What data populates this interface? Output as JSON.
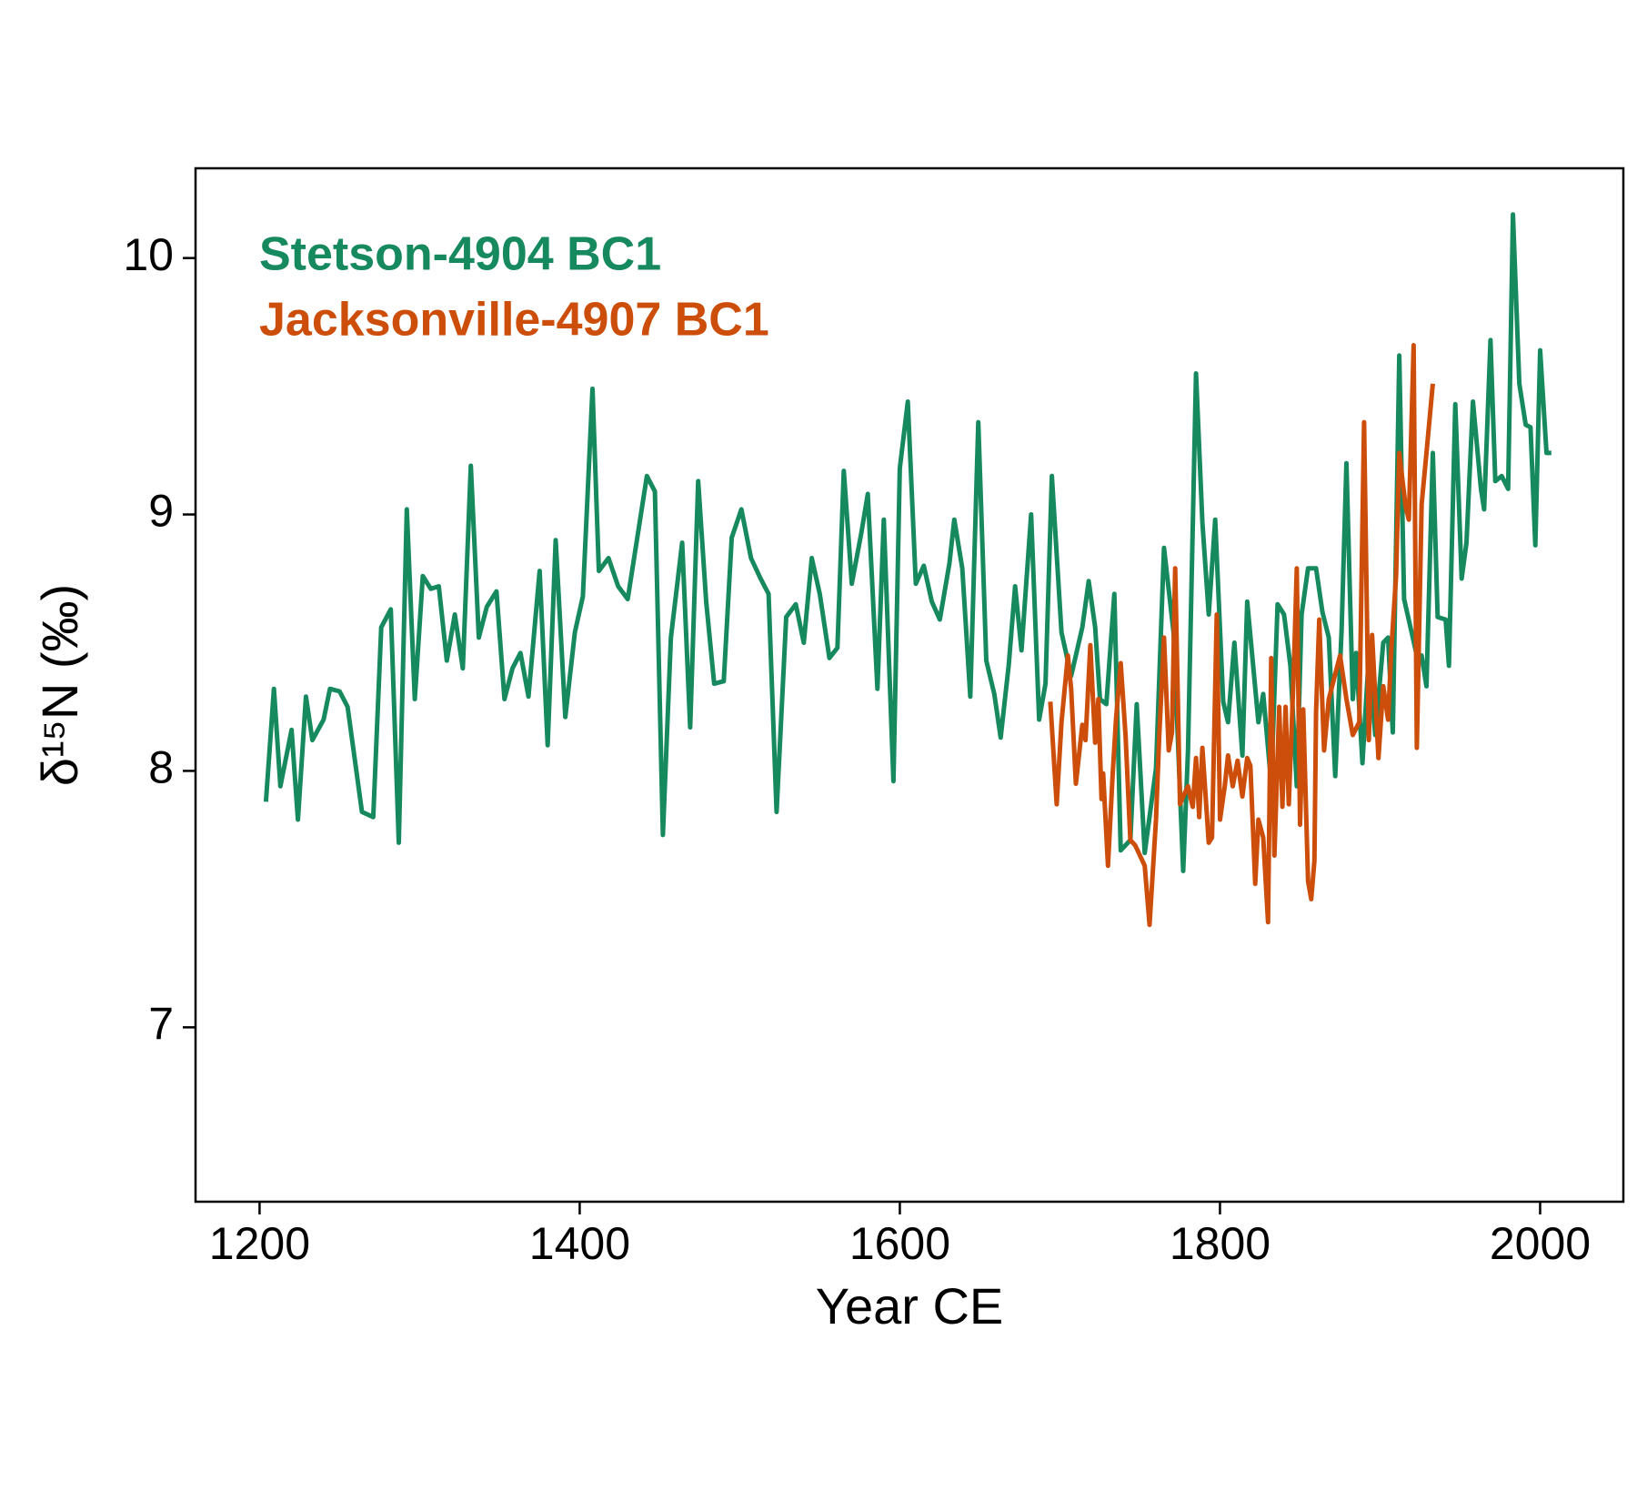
{
  "chart_data": {
    "type": "line",
    "x_label": "Year CE",
    "y_label": "δ¹⁵N (‰)",
    "xlim": [
      1160,
      2052
    ],
    "ylim": [
      6.32,
      10.35
    ],
    "xticks": [
      1200,
      1400,
      1600,
      1800,
      2000
    ],
    "yticks": [
      7,
      8,
      9,
      10
    ],
    "grid": false,
    "legend": "upper left",
    "series": [
      {
        "name": "Stetson-4904 BC1",
        "color": "#168a5e",
        "x": [
          1204,
          1209,
          1213,
          1220,
          1224,
          1229,
          1233,
          1240,
          1244,
          1250,
          1255,
          1264,
          1271,
          1276,
          1282,
          1287,
          1292,
          1297,
          1302,
          1307,
          1312,
          1317,
          1322,
          1327,
          1332,
          1337,
          1342,
          1348,
          1353,
          1358,
          1363,
          1368,
          1375,
          1380,
          1385,
          1391,
          1397,
          1402,
          1408,
          1412,
          1418,
          1424,
          1430,
          1442,
          1447,
          1452,
          1457,
          1464,
          1469,
          1474,
          1479,
          1484,
          1490,
          1495,
          1501,
          1507,
          1513,
          1518,
          1523,
          1529,
          1535,
          1540,
          1545,
          1550,
          1556,
          1561,
          1565,
          1570,
          1576,
          1580,
          1586,
          1590,
          1596,
          1600,
          1605,
          1610,
          1615,
          1620,
          1625,
          1631,
          1634,
          1639,
          1644,
          1649,
          1654,
          1659,
          1663,
          1668,
          1672,
          1676,
          1682,
          1687,
          1691,
          1695,
          1701,
          1707,
          1714,
          1718,
          1722,
          1725,
          1729,
          1734,
          1738,
          1744,
          1748,
          1753,
          1760,
          1765,
          1771,
          1777,
          1780,
          1785,
          1789,
          1793,
          1797,
          1802,
          1805,
          1809,
          1814,
          1817,
          1824,
          1827,
          1832,
          1836,
          1840,
          1844,
          1848,
          1851,
          1855,
          1860,
          1864,
          1868,
          1872,
          1876,
          1879,
          1883,
          1885,
          1889,
          1893,
          1897,
          1902,
          1905,
          1908,
          1912,
          1915,
          1919,
          1923,
          1926,
          1929,
          1933,
          1936,
          1941,
          1943,
          1947,
          1951,
          1954,
          1958,
          1963,
          1965,
          1969,
          1972,
          1976,
          1980,
          1983,
          1987,
          1991,
          1994,
          1997,
          2000,
          2004,
          2007
        ],
        "values": [
          7.88,
          8.32,
          7.94,
          8.16,
          7.81,
          8.29,
          8.12,
          8.2,
          8.32,
          8.31,
          8.25,
          7.84,
          7.82,
          8.56,
          8.63,
          7.72,
          9.02,
          8.28,
          8.76,
          8.71,
          8.72,
          8.43,
          8.61,
          8.4,
          9.19,
          8.52,
          8.64,
          8.7,
          8.28,
          8.4,
          8.46,
          8.29,
          8.78,
          8.1,
          8.9,
          8.21,
          8.54,
          8.68,
          9.49,
          8.78,
          8.83,
          8.72,
          8.67,
          9.15,
          9.09,
          7.75,
          8.52,
          8.89,
          8.17,
          9.13,
          8.66,
          8.34,
          8.35,
          8.91,
          9.02,
          8.83,
          8.75,
          8.69,
          7.84,
          8.6,
          8.65,
          8.5,
          8.83,
          8.69,
          8.44,
          8.48,
          9.17,
          8.73,
          8.93,
          9.08,
          8.32,
          8.98,
          7.96,
          9.18,
          9.44,
          8.73,
          8.8,
          8.66,
          8.59,
          8.81,
          8.98,
          8.79,
          8.29,
          9.36,
          8.43,
          8.3,
          8.13,
          8.41,
          8.72,
          8.47,
          9.0,
          8.2,
          8.34,
          9.15,
          8.54,
          8.37,
          8.56,
          8.74,
          8.56,
          8.28,
          8.26,
          8.69,
          7.69,
          7.73,
          8.26,
          7.68,
          8.01,
          8.87,
          8.54,
          7.61,
          8.08,
          9.55,
          8.97,
          8.61,
          8.98,
          8.27,
          8.19,
          8.5,
          8.06,
          8.66,
          8.19,
          8.3,
          7.95,
          8.65,
          8.61,
          8.41,
          7.94,
          8.61,
          8.79,
          8.79,
          8.62,
          8.52,
          7.98,
          8.55,
          9.2,
          8.28,
          8.46,
          8.03,
          8.45,
          8.14,
          8.5,
          8.52,
          8.15,
          9.62,
          8.67,
          8.56,
          8.45,
          8.45,
          8.33,
          9.24,
          8.6,
          8.59,
          8.41,
          9.43,
          8.75,
          8.89,
          9.44,
          9.1,
          9.02,
          9.68,
          9.13,
          9.15,
          9.1,
          10.17,
          9.51,
          9.35,
          9.34,
          8.88,
          9.64,
          9.24,
          9.24
        ]
      },
      {
        "name": "Jacksonville-4907 BC1",
        "color": "#cc4e0a",
        "x": [
          1694,
          1698,
          1701,
          1705,
          1707,
          1710,
          1714,
          1716,
          1719,
          1722,
          1724,
          1726,
          1727,
          1730,
          1733,
          1735,
          1738,
          1741,
          1744,
          1747,
          1750,
          1753,
          1756,
          1760,
          1762,
          1765,
          1768,
          1770,
          1772,
          1775,
          1777,
          1780,
          1783,
          1785,
          1787,
          1789,
          1793,
          1795,
          1798,
          1800,
          1803,
          1805,
          1808,
          1811,
          1814,
          1817,
          1819,
          1822,
          1824,
          1827,
          1830,
          1832,
          1834,
          1837,
          1839,
          1841,
          1843,
          1846,
          1848,
          1850,
          1852,
          1855,
          1857,
          1859,
          1860,
          1862,
          1865,
          1868,
          1875,
          1879,
          1883,
          1887,
          1890,
          1893,
          1895,
          1899,
          1902,
          1905,
          1907,
          1910,
          1912,
          1916,
          1918,
          1921,
          1923,
          1926,
          1929,
          1933
        ],
        "values": [
          8.27,
          7.87,
          8.19,
          8.45,
          8.32,
          7.95,
          8.18,
          8.12,
          8.49,
          8.11,
          8.28,
          7.89,
          7.99,
          7.63,
          7.99,
          8.2,
          8.42,
          8.14,
          7.73,
          7.71,
          7.67,
          7.63,
          7.4,
          7.81,
          8.13,
          8.52,
          8.08,
          8.15,
          8.79,
          7.87,
          7.9,
          7.94,
          7.86,
          8.05,
          7.82,
          8.09,
          7.72,
          7.74,
          8.61,
          7.81,
          7.94,
          8.06,
          7.94,
          8.04,
          7.9,
          8.05,
          8.02,
          7.56,
          7.81,
          7.74,
          7.41,
          8.44,
          7.67,
          8.25,
          7.86,
          8.25,
          7.87,
          8.37,
          8.79,
          7.79,
          8.24,
          7.57,
          7.5,
          7.65,
          8.23,
          8.59,
          8.08,
          8.28,
          8.45,
          8.28,
          8.14,
          8.19,
          9.36,
          8.12,
          8.53,
          8.05,
          8.33,
          8.2,
          8.47,
          8.76,
          9.24,
          9.03,
          8.98,
          9.66,
          8.09,
          9.04,
          9.24,
          9.51
        ]
      }
    ]
  }
}
